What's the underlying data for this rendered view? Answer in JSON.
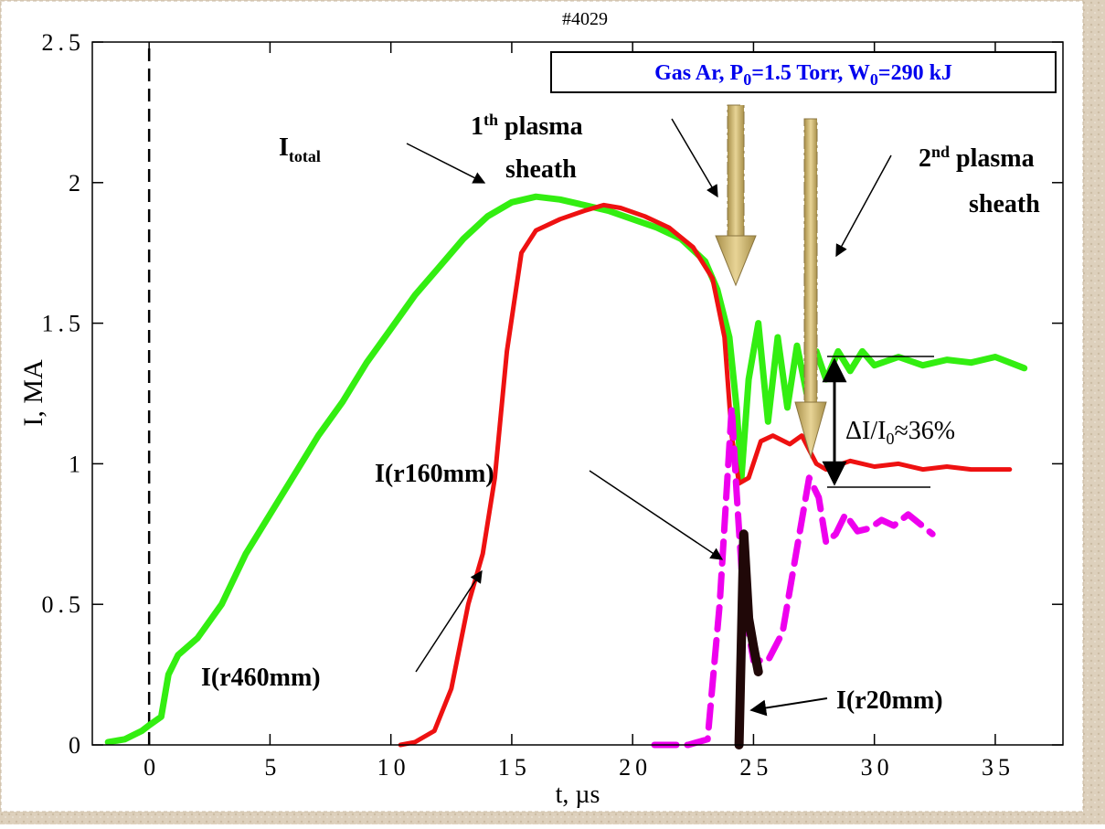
{
  "chart_data": {
    "type": "line",
    "title": "#4029",
    "x_label": "t, µs",
    "y_label": "I, MA",
    "xlim": [
      -2.35,
      37.8
    ],
    "ylim": [
      0,
      2.5
    ],
    "xticks": [
      0,
      5,
      10,
      15,
      20,
      25,
      30,
      35
    ],
    "yticks": [
      0,
      0.5,
      1,
      1.5,
      2,
      2.5
    ],
    "zero_line": true,
    "series": [
      {
        "name": {
          "main": "I",
          "sub": "total"
        },
        "color": "#33ee11",
        "style": "solid",
        "x": [
          -1.7,
          -1,
          -0.3,
          0,
          0.5,
          0.8,
          1.2,
          2,
          3,
          4,
          5,
          6,
          7,
          8,
          9,
          10,
          11,
          12,
          13,
          14,
          15,
          16,
          17,
          18,
          19,
          20,
          21,
          22,
          23,
          23.5,
          24,
          24.3,
          24.5,
          24.8,
          25.2,
          25.6,
          26,
          26.4,
          26.8,
          27.2,
          27.6,
          28,
          28.5,
          29,
          29.5,
          30,
          31,
          32,
          33,
          34,
          35,
          36.2
        ],
        "values": [
          0.01,
          0.02,
          0.05,
          0.07,
          0.1,
          0.25,
          0.32,
          0.38,
          0.5,
          0.68,
          0.82,
          0.96,
          1.1,
          1.22,
          1.36,
          1.48,
          1.6,
          1.7,
          1.8,
          1.88,
          1.93,
          1.95,
          1.94,
          1.92,
          1.9,
          1.87,
          1.84,
          1.8,
          1.72,
          1.62,
          1.45,
          1.2,
          0.95,
          1.3,
          1.5,
          1.15,
          1.45,
          1.2,
          1.42,
          1.25,
          1.4,
          1.3,
          1.4,
          1.33,
          1.4,
          1.35,
          1.38,
          1.35,
          1.37,
          1.36,
          1.38,
          1.34
        ]
      },
      {
        "name": "I(r460mm)",
        "color": "#ee1111",
        "style": "solid",
        "x": [
          10.4,
          11,
          11.8,
          12.5,
          13.2,
          13.8,
          14.3,
          14.8,
          15.4,
          16,
          17,
          18,
          18.8,
          19.5,
          20.5,
          21.5,
          22.5,
          23.3,
          23.8,
          24.1,
          24.4,
          24.8,
          25.3,
          25.8,
          26.5,
          27,
          27.6,
          28,
          29,
          30,
          31,
          32,
          33,
          34,
          35.6
        ],
        "values": [
          0,
          0.01,
          0.05,
          0.2,
          0.5,
          0.68,
          0.95,
          1.4,
          1.75,
          1.83,
          1.87,
          1.9,
          1.92,
          1.91,
          1.88,
          1.84,
          1.77,
          1.66,
          1.45,
          1.1,
          0.93,
          0.95,
          1.08,
          1.1,
          1.07,
          1.1,
          1,
          0.98,
          1.01,
          0.99,
          1,
          0.98,
          0.99,
          0.98,
          0.98
        ]
      },
      {
        "name": "I(r160mm)",
        "color": "#ee00ee",
        "style": "dashed",
        "x": [
          20.9,
          22.3,
          23.1,
          23.6,
          24.1,
          24.3,
          24.6,
          25,
          25.6,
          26.2,
          26.8,
          27.3,
          27.7,
          28,
          28.4,
          28.8,
          29.3,
          29.8,
          30.3,
          30.8,
          31.4,
          32.4
        ],
        "values": [
          0,
          0,
          0.02,
          0.5,
          1.2,
          0.9,
          0.5,
          0.3,
          0.3,
          0.4,
          0.7,
          0.95,
          0.88,
          0.72,
          0.75,
          0.82,
          0.76,
          0.77,
          0.8,
          0.78,
          0.82,
          0.75
        ]
      },
      {
        "name": "I(r20mm)",
        "color": "#200808",
        "style": "thick",
        "x": [
          24.4,
          24.6,
          24.8,
          25,
          25.2
        ],
        "values": [
          0,
          0.75,
          0.45,
          0.35,
          0.26
        ]
      }
    ],
    "annotations": {
      "sheath_1": [
        "1",
        "th",
        " plasma",
        "sheath"
      ],
      "sheath_2": [
        "2",
        "nd",
        " plasma",
        "sheath"
      ],
      "conditions": [
        "Gas Ar, P",
        "0",
        "=1.5 Torr, W",
        "0",
        "=290 kJ"
      ],
      "drop": [
        "ΔI/I",
        "0",
        "≈36%"
      ]
    }
  }
}
